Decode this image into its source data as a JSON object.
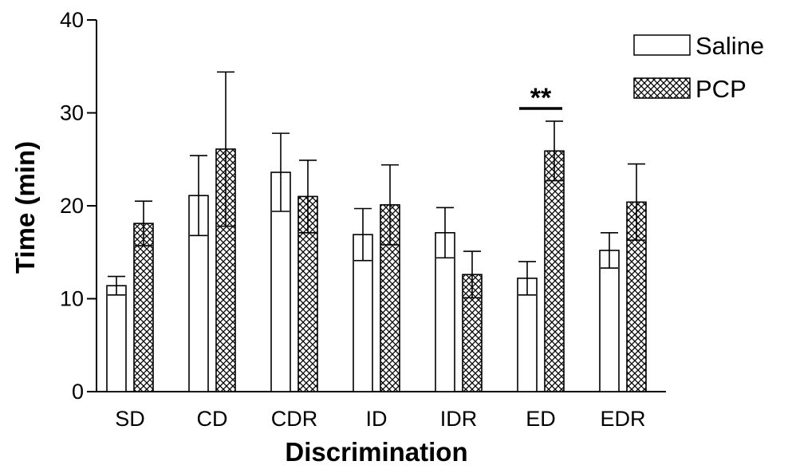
{
  "chart_data": {
    "type": "bar",
    "title": "",
    "xlabel": "Discrimination",
    "ylabel": "Time (min)",
    "ylim": [
      0,
      40
    ],
    "yticks": [
      "0",
      "10",
      "20",
      "30",
      "40"
    ],
    "categories": [
      "SD",
      "CD",
      "CDR",
      "ID",
      "IDR",
      "ED",
      "EDR"
    ],
    "series": [
      {
        "name": "Saline",
        "pattern": "none",
        "values": [
          11.4,
          21.1,
          23.6,
          16.9,
          17.1,
          12.2,
          15.2
        ],
        "errors": [
          1.0,
          4.3,
          4.2,
          2.8,
          2.7,
          1.8,
          1.9
        ]
      },
      {
        "name": "PCP",
        "pattern": "crosshatch",
        "values": [
          18.1,
          26.1,
          21.0,
          20.1,
          12.6,
          25.9,
          20.4
        ],
        "errors": [
          2.4,
          8.3,
          3.9,
          4.3,
          2.5,
          3.2,
          4.1
        ]
      }
    ],
    "annotations": [
      {
        "category": "ED",
        "text": "**"
      }
    ],
    "legend": {
      "position": "top-right"
    },
    "grid": false,
    "colors": {
      "bar_fill": "#ffffff",
      "stroke": "#000000"
    }
  }
}
